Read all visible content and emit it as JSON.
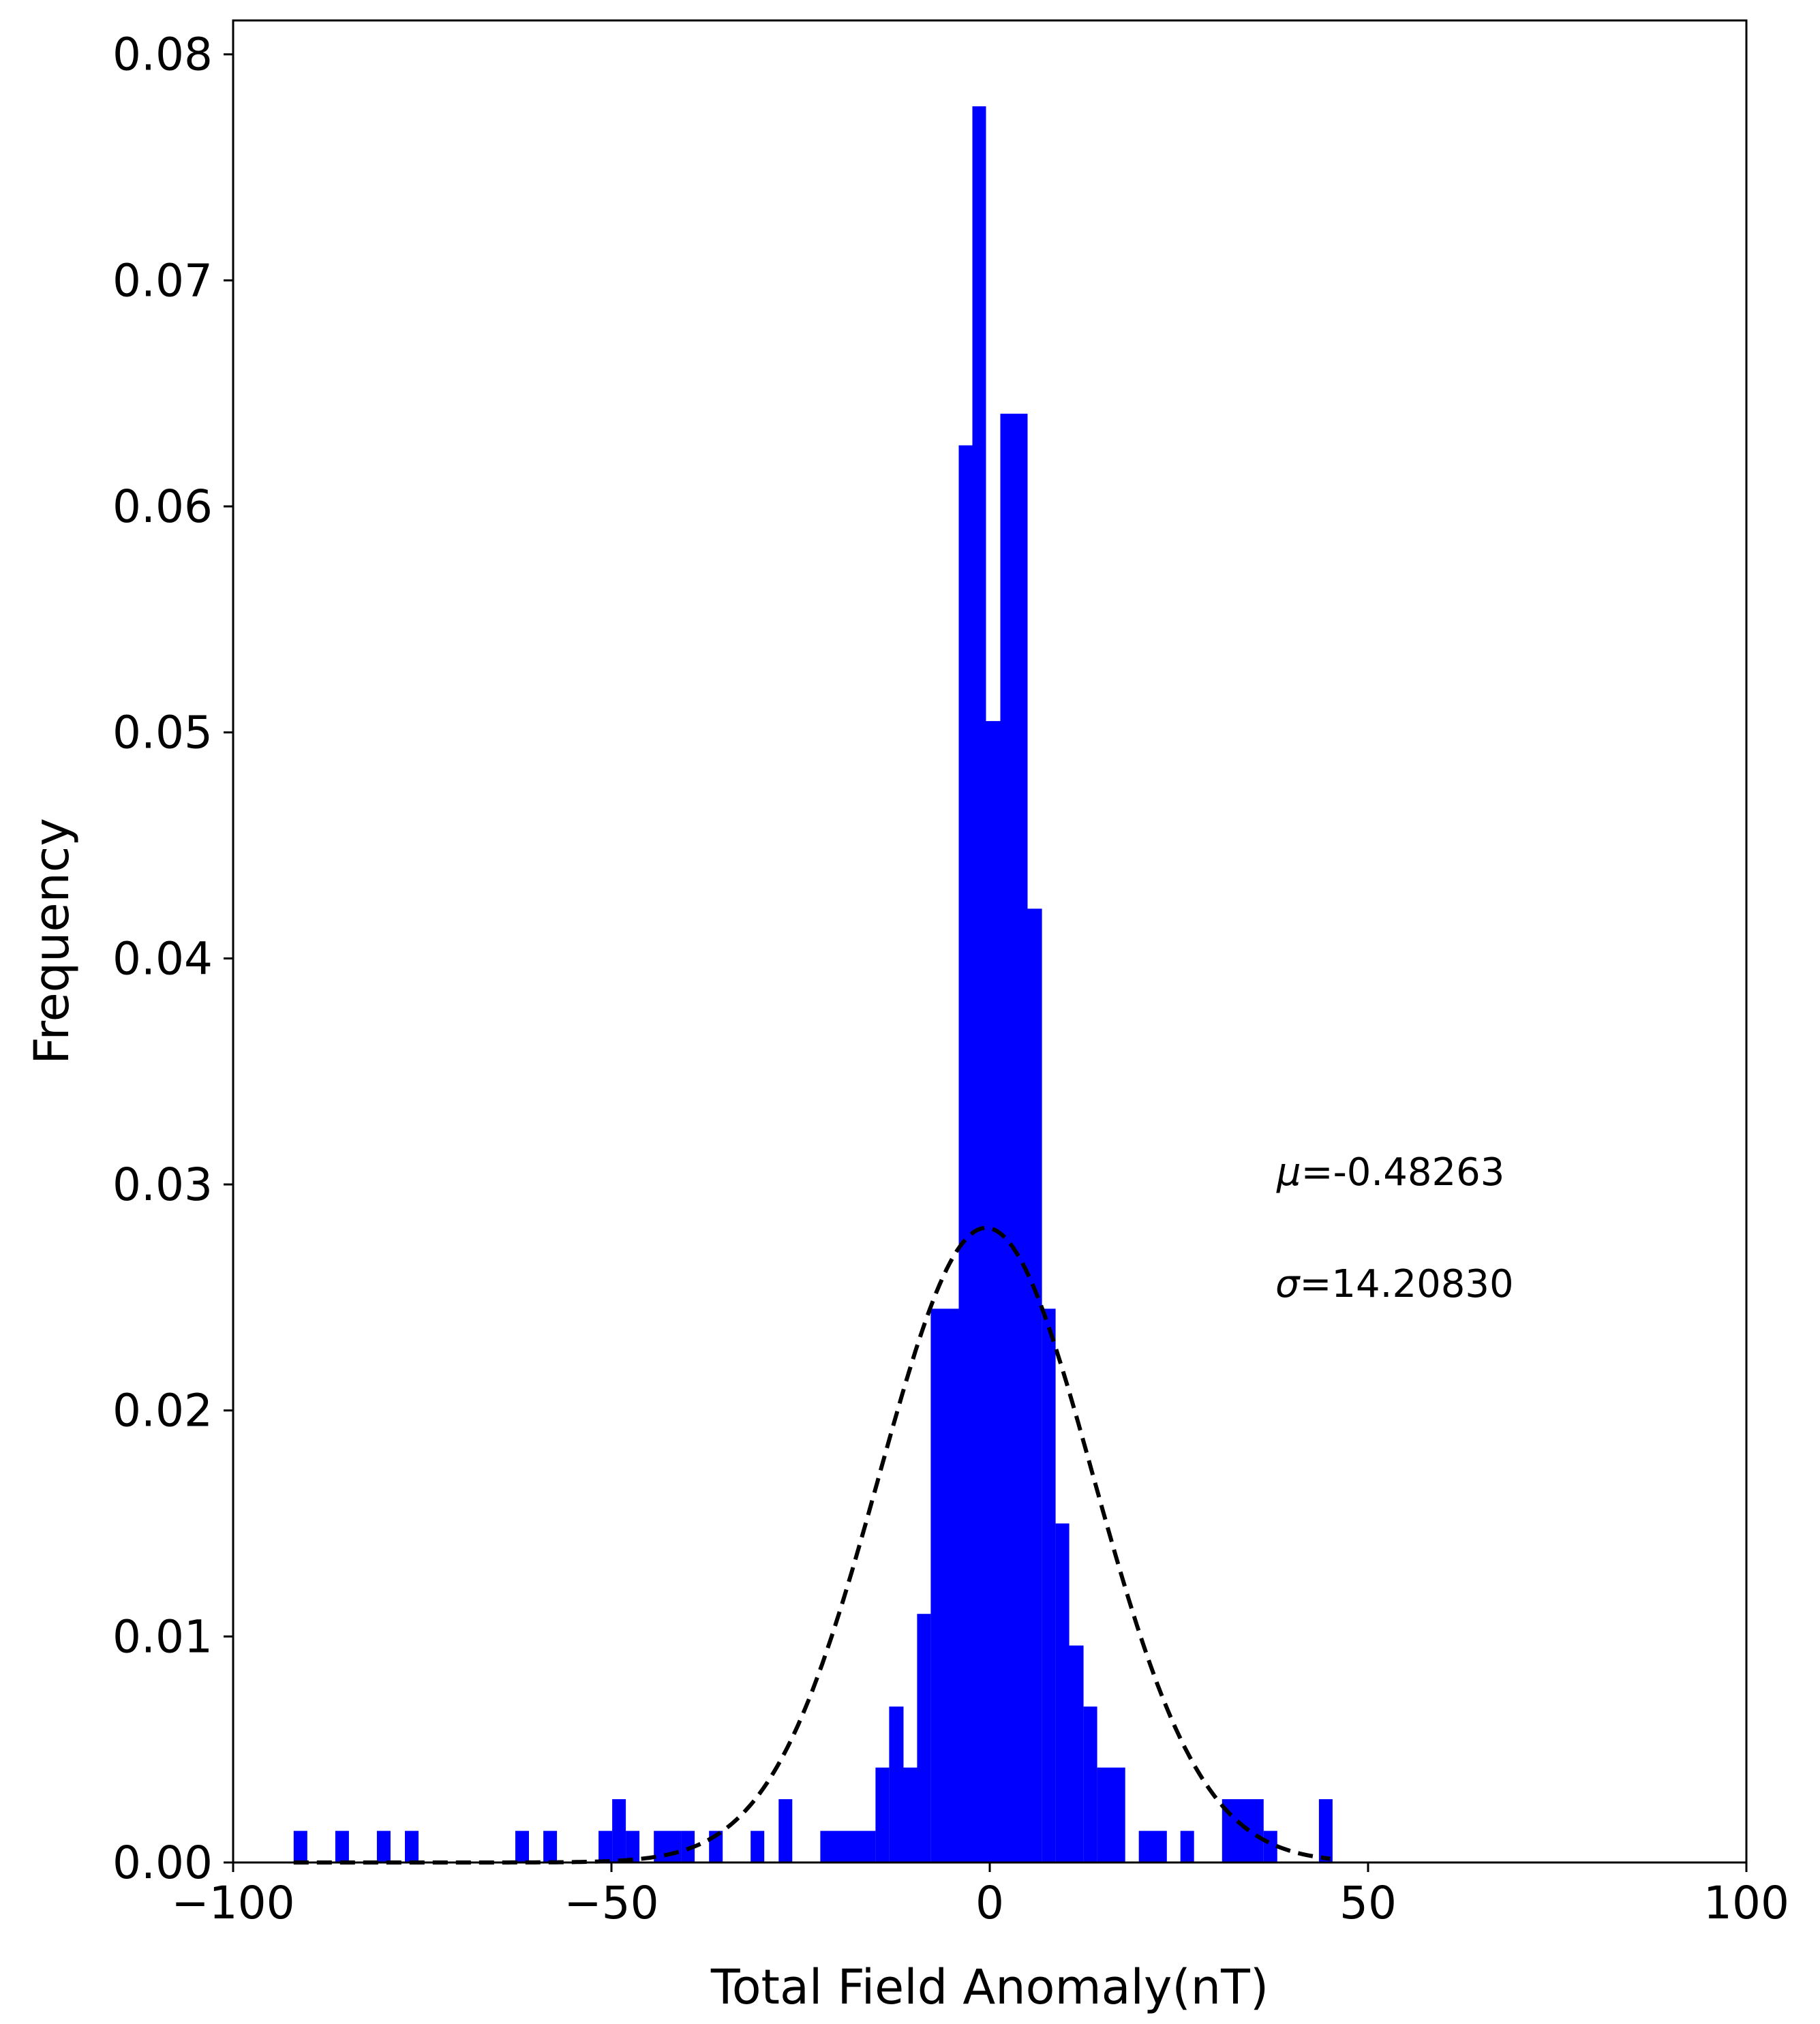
{
  "chart_data": {
    "type": "bar",
    "xlabel": "Total Field Anomaly(nT)",
    "ylabel": "Frequency",
    "xlim": [
      -100,
      100
    ],
    "ylim": [
      0,
      0.0815
    ],
    "xticks": [
      -100,
      -50,
      0,
      50,
      100
    ],
    "xtick_labels": [
      "−100",
      "−50",
      "0",
      "50",
      "100"
    ],
    "yticks": [
      0,
      0.01,
      0.02,
      0.03,
      0.04,
      0.05,
      0.06,
      0.07,
      0.08
    ],
    "ytick_labels": [
      "0.00",
      "0.01",
      "0.02",
      "0.03",
      "0.04",
      "0.05",
      "0.06",
      "0.07",
      "0.08"
    ],
    "grid": false,
    "bar_color": "#0000ff",
    "bins": [
      {
        "x0": -92.0,
        "x1": -90.2,
        "y": 0.0014
      },
      {
        "x0": -86.5,
        "x1": -84.7,
        "y": 0.0014
      },
      {
        "x0": -81.0,
        "x1": -79.2,
        "y": 0.0014
      },
      {
        "x0": -77.3,
        "x1": -75.5,
        "y": 0.0014
      },
      {
        "x0": -62.7,
        "x1": -60.9,
        "y": 0.0014
      },
      {
        "x0": -59.0,
        "x1": -57.2,
        "y": 0.0014
      },
      {
        "x0": -51.7,
        "x1": -49.9,
        "y": 0.0014
      },
      {
        "x0": -49.9,
        "x1": -48.1,
        "y": 0.0028
      },
      {
        "x0": -48.1,
        "x1": -46.3,
        "y": 0.0014
      },
      {
        "x0": -44.4,
        "x1": -40.8,
        "y": 0.0014
      },
      {
        "x0": -40.8,
        "x1": -39.0,
        "y": 0.0014
      },
      {
        "x0": -37.1,
        "x1": -35.3,
        "y": 0.0014
      },
      {
        "x0": -31.6,
        "x1": -29.8,
        "y": 0.0014
      },
      {
        "x0": -27.9,
        "x1": -26.1,
        "y": 0.0028
      },
      {
        "x0": -22.4,
        "x1": -15.1,
        "y": 0.0014
      },
      {
        "x0": -15.1,
        "x1": -13.3,
        "y": 0.0042
      },
      {
        "x0": -13.3,
        "x1": -11.4,
        "y": 0.0069
      },
      {
        "x0": -11.4,
        "x1": -9.6,
        "y": 0.0042
      },
      {
        "x0": -9.6,
        "x1": -7.8,
        "y": 0.011
      },
      {
        "x0": -7.8,
        "x1": -4.1,
        "y": 0.0245
      },
      {
        "x0": -4.1,
        "x1": -2.3,
        "y": 0.0627
      },
      {
        "x0": -2.3,
        "x1": -0.5,
        "y": 0.0777
      },
      {
        "x0": -0.5,
        "x1": 1.4,
        "y": 0.0505
      },
      {
        "x0": 1.4,
        "x1": 5.0,
        "y": 0.0641
      },
      {
        "x0": 5.0,
        "x1": 6.9,
        "y": 0.0422
      },
      {
        "x0": 6.9,
        "x1": 8.7,
        "y": 0.0245
      },
      {
        "x0": 8.7,
        "x1": 10.5,
        "y": 0.015
      },
      {
        "x0": 10.5,
        "x1": 12.4,
        "y": 0.0096
      },
      {
        "x0": 12.4,
        "x1": 14.2,
        "y": 0.0069
      },
      {
        "x0": 14.2,
        "x1": 17.9,
        "y": 0.0042
      },
      {
        "x0": 19.7,
        "x1": 23.4,
        "y": 0.0014
      },
      {
        "x0": 25.2,
        "x1": 27.0,
        "y": 0.0014
      },
      {
        "x0": 30.7,
        "x1": 36.2,
        "y": 0.0028
      },
      {
        "x0": 36.2,
        "x1": 38.0,
        "y": 0.0014
      },
      {
        "x0": 43.5,
        "x1": 45.3,
        "y": 0.0028
      }
    ],
    "fit_curve": {
      "type": "normal",
      "style": "dashed",
      "color": "#000000",
      "mu": -0.48263,
      "sigma": 14.2083,
      "x_range": [
        -92,
        45
      ]
    }
  },
  "annotations": {
    "mu_symbol": "μ",
    "mu_text": "=-0.48263",
    "sigma_symbol": "σ",
    "sigma_text": "=14.20830"
  }
}
